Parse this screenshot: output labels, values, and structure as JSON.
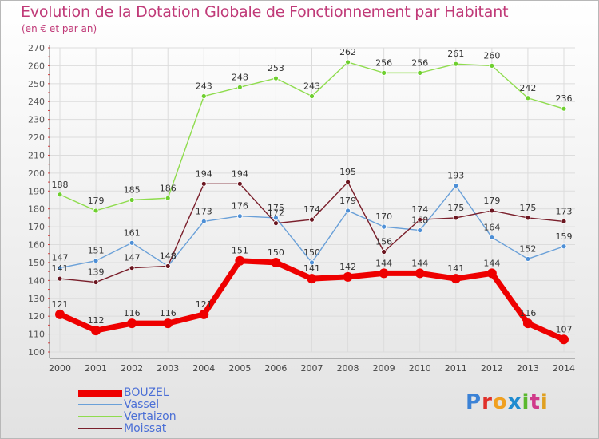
{
  "chart_data": {
    "type": "line",
    "title": "Evolution de la Dotation Globale de Fonctionnement par Habitant",
    "subtitle": "(en € et par an)",
    "xlabel": "",
    "ylabel": "",
    "ylim": [
      100,
      270
    ],
    "y_ticks": [
      100,
      110,
      120,
      130,
      140,
      150,
      160,
      170,
      180,
      190,
      200,
      210,
      220,
      230,
      240,
      250,
      260,
      270
    ],
    "categories": [
      "2000",
      "2001",
      "2002",
      "2003",
      "2004",
      "2005",
      "2006",
      "2007",
      "2008",
      "2009",
      "2010",
      "2011",
      "2012",
      "2013",
      "2014"
    ],
    "grid": true,
    "legend_position": "bottom-left",
    "series": [
      {
        "name": "Vertaizon",
        "color": "#8fdc4e",
        "marker": "#6ecf2f",
        "emphasis": false,
        "values": [
          188,
          179,
          185,
          186,
          243,
          248,
          253,
          243,
          262,
          256,
          256,
          261,
          260,
          242,
          236
        ]
      },
      {
        "name": "Vassel",
        "color": "#6aa0d8",
        "marker": "#4d8fd6",
        "emphasis": false,
        "values": [
          147,
          151,
          161,
          148,
          173,
          176,
          175,
          150,
          179,
          170,
          168,
          193,
          164,
          152,
          159
        ]
      },
      {
        "name": "Moissat",
        "color": "#7a1f2b",
        "marker": "#6b1620",
        "emphasis": false,
        "values": [
          141,
          139,
          147,
          148,
          194,
          194,
          172,
          174,
          195,
          156,
          174,
          175,
          179,
          175,
          173
        ]
      },
      {
        "name": "BOUZEL",
        "color": "#ee0000",
        "marker": "#ee0000",
        "emphasis": true,
        "values": [
          121,
          112,
          116,
          116,
          121,
          151,
          150,
          141,
          142,
          144,
          144,
          141,
          144,
          116,
          107
        ]
      }
    ],
    "legend_order": [
      "BOUZEL",
      "Vassel",
      "Vertaizon",
      "Moissat"
    ]
  },
  "brand": {
    "letters": [
      "P",
      "r",
      "o",
      "x",
      "i",
      "t",
      "i"
    ],
    "colors": [
      "#3b82d6",
      "#e0302a",
      "#f0a020",
      "#1e8bd0",
      "#5ab82e",
      "#d03a8a",
      "#e0a020"
    ]
  }
}
